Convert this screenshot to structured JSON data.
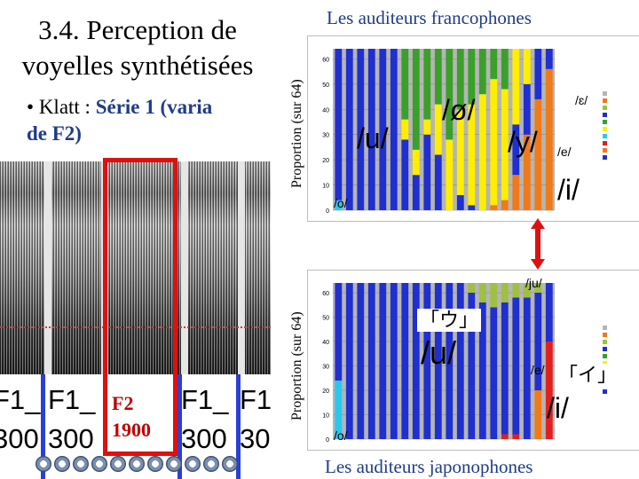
{
  "slide": {
    "title": "3.4. Perception de voyelles synthétisées",
    "bullet_prefix": "Klatt : ",
    "bullet_emphasis": "Série 1 (varia",
    "bullet_line2": "de F2)"
  },
  "spectrogram": {
    "cells": [
      {
        "text": "F1_",
        "col": 0,
        "row": 0
      },
      {
        "text": "F1_",
        "col": 1,
        "row": 0
      },
      {
        "text": "F1_",
        "col": 3,
        "row": 0
      },
      {
        "text": "F1",
        "col": 4,
        "row": 0
      },
      {
        "text": "300",
        "col": 0,
        "row": 1
      },
      {
        "text": "300",
        "col": 1,
        "row": 1
      },
      {
        "text": "300",
        "col": 3,
        "row": 1
      },
      {
        "text": "30",
        "col": 4,
        "row": 1
      }
    ],
    "highlight_label_line1": "F2",
    "highlight_label_line2": "1900"
  },
  "chart_top": {
    "title": "Les auditeurs francophones",
    "ylabel": "Proportion (sur 64)",
    "vowels": [
      {
        "text": "/u/",
        "size": "big"
      },
      {
        "text": "/ø/",
        "size": "big"
      },
      {
        "text": "/y/",
        "size": "big"
      },
      {
        "text": "/i/",
        "size": "big"
      },
      {
        "text": "/o/",
        "size": "small"
      },
      {
        "text": "/e/",
        "size": "small"
      },
      {
        "text": "/ɛ/",
        "size": "small"
      }
    ]
  },
  "chart_bottom": {
    "title": "Les auditeurs japonophones",
    "ylabel": "Proportion (sur 64)",
    "vowels": [
      {
        "text": "/u/",
        "size": "big"
      },
      {
        "text": "/i/",
        "size": "big"
      },
      {
        "text": "/ju/",
        "size": "small"
      },
      {
        "text": "/e/",
        "size": "small"
      },
      {
        "text": "/o/",
        "size": "small"
      }
    ],
    "kana_u": "「ウ」",
    "kana_i": "「イ」"
  },
  "colors": {
    "accent": "#1f3c88",
    "highlight": "#e01010",
    "arrow": "#e01010",
    "blue": "#1f2fd0",
    "green": "#3aa02a",
    "yellow": "#ffee00",
    "orange": "#f07a1a",
    "gray": "#b5b5b5",
    "cyan": "#28c8f0",
    "red": "#e02020",
    "olive": "#9fc040"
  },
  "chart_data": [
    {
      "type": "bar",
      "title": "Les auditeurs francophones",
      "ylabel": "Proportion (sur 64)",
      "ylim": [
        0,
        64
      ],
      "yticks": [
        0,
        10,
        20,
        30,
        40,
        50,
        60
      ],
      "bars": [
        {
          "cyan": 4,
          "blue": 60
        },
        {
          "blue": 64
        },
        {
          "blue": 64
        },
        {
          "blue": 64
        },
        {
          "blue": 64
        },
        {
          "blue": 64
        },
        {
          "blue": 28,
          "yellow": 8,
          "green": 28
        },
        {
          "blue": 14,
          "yellow": 10,
          "green": 40
        },
        {
          "blue": 30,
          "yellow": 6,
          "green": 28
        },
        {
          "blue": 22,
          "yellow": 20,
          "green": 22
        },
        {
          "yellow": 28,
          "green": 36
        },
        {
          "blue": 6,
          "yellow": 34,
          "green": 24
        },
        {
          "blue": 2,
          "yellow": 40,
          "green": 22
        },
        {
          "yellow": 46,
          "green": 18
        },
        {
          "orange": 2,
          "yellow": 50,
          "green": 12
        },
        {
          "orange": 4,
          "yellow": 44,
          "green": 16
        },
        {
          "orange": 14,
          "yellow": 30,
          "blue": 20
        },
        {
          "orange": 30,
          "yellow": 14,
          "blue": 20
        },
        {
          "orange": 44,
          "blue": 20
        },
        {
          "orange": 56,
          "blue": 8
        }
      ]
    },
    {
      "type": "bar",
      "title": "Les auditeurs japonophones",
      "ylabel": "Proportion (sur 64)",
      "ylim": [
        0,
        64
      ],
      "yticks": [
        0,
        10,
        20,
        30,
        40,
        50,
        60
      ],
      "bars": [
        {
          "cyan": 24,
          "blue": 40
        },
        {
          "blue": 64
        },
        {
          "blue": 64
        },
        {
          "blue": 64
        },
        {
          "blue": 64
        },
        {
          "blue": 64
        },
        {
          "blue": 64
        },
        {
          "blue": 64
        },
        {
          "blue": 64
        },
        {
          "blue": 64
        },
        {
          "blue": 64
        },
        {
          "blue": 64
        },
        {
          "blue": 60,
          "olive": 4
        },
        {
          "blue": 56,
          "olive": 8
        },
        {
          "blue": 54,
          "olive": 10
        },
        {
          "red": 2,
          "blue": 54,
          "olive": 8
        },
        {
          "red": 2,
          "blue": 56,
          "olive": 6
        },
        {
          "blue": 58,
          "olive": 6
        },
        {
          "orange": 20,
          "blue": 40,
          "olive": 4
        },
        {
          "red": 40,
          "blue": 24
        }
      ]
    }
  ]
}
